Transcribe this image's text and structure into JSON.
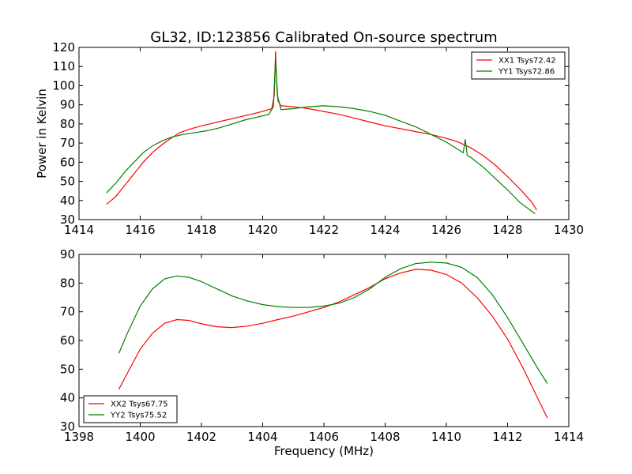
{
  "figure": {
    "title": "GL32, ID:123856 Calibrated On-source spectrum"
  },
  "chart_data": [
    {
      "type": "line",
      "title": "GL32, ID:123856 Calibrated On-source spectrum",
      "xlabel": "",
      "ylabel": "Power in Kelvin",
      "xlim": [
        1414,
        1430
      ],
      "ylim": [
        30,
        120
      ],
      "xticks": [
        1414,
        1416,
        1418,
        1420,
        1422,
        1424,
        1426,
        1428,
        1430
      ],
      "yticks": [
        30,
        40,
        50,
        60,
        70,
        80,
        90,
        100,
        110,
        120
      ],
      "grid": false,
      "legend": "top-right",
      "series": [
        {
          "name": "XX1 Tsys72.42",
          "color": "#ff0000",
          "x": [
            1414.9,
            1415.2,
            1415.5,
            1415.8,
            1416.1,
            1416.4,
            1416.7,
            1417.0,
            1417.3,
            1417.6,
            1418.0,
            1418.4,
            1418.8,
            1419.2,
            1419.6,
            1420.0,
            1420.3,
            1420.38,
            1420.42,
            1420.45,
            1420.5,
            1420.6,
            1421.0,
            1421.5,
            1422.0,
            1422.5,
            1423.0,
            1423.5,
            1424.0,
            1424.5,
            1425.0,
            1425.5,
            1426.0,
            1426.4,
            1426.8,
            1427.2,
            1427.6,
            1428.0,
            1428.4,
            1428.8,
            1428.95
          ],
          "y": [
            38,
            42,
            48,
            54,
            60,
            65,
            69,
            72.5,
            75.5,
            77.2,
            79,
            80.5,
            82,
            83.5,
            85,
            86.5,
            88,
            95,
            118,
            105,
            92,
            89.5,
            89,
            88,
            86.5,
            85,
            83,
            81,
            79,
            77.5,
            76,
            74.5,
            72.5,
            70.5,
            67.5,
            63.5,
            58.5,
            52.5,
            46,
            39,
            35
          ]
        },
        {
          "name": "YY1 Tsys72.86",
          "color": "#008000",
          "x": [
            1414.9,
            1415.2,
            1415.5,
            1415.8,
            1416.1,
            1416.4,
            1416.7,
            1417.0,
            1417.4,
            1417.8,
            1418.2,
            1418.6,
            1419.0,
            1419.4,
            1419.8,
            1420.2,
            1420.35,
            1420.42,
            1420.48,
            1420.6,
            1421.0,
            1421.5,
            1422.0,
            1422.5,
            1423.0,
            1423.5,
            1424.0,
            1424.5,
            1425.0,
            1425.5,
            1426.0,
            1426.55,
            1426.62,
            1426.68,
            1426.8,
            1427.2,
            1427.6,
            1428.0,
            1428.4,
            1428.9
          ],
          "y": [
            44,
            49,
            55,
            60,
            65,
            68.5,
            71,
            73,
            74.5,
            75.5,
            76.5,
            78,
            80,
            82,
            83.5,
            85,
            89,
            114,
            95,
            87.5,
            88,
            89,
            89.5,
            89,
            88,
            86.5,
            84.5,
            81.5,
            78.5,
            74.5,
            70.5,
            65,
            72,
            63.5,
            62.5,
            57.5,
            51.5,
            45.5,
            39,
            33
          ]
        }
      ]
    },
    {
      "type": "line",
      "title": "",
      "xlabel": "Frequency (MHz)",
      "ylabel": "",
      "xlim": [
        1398,
        1414
      ],
      "ylim": [
        30,
        90
      ],
      "xticks": [
        1398,
        1400,
        1402,
        1404,
        1406,
        1408,
        1410,
        1412,
        1414
      ],
      "yticks": [
        30,
        40,
        50,
        60,
        70,
        80,
        90
      ],
      "grid": false,
      "legend": "bottom-left",
      "series": [
        {
          "name": "XX2 Tsys67.75",
          "color": "#ff0000",
          "x": [
            1399.3,
            1399.6,
            1400.0,
            1400.4,
            1400.8,
            1401.2,
            1401.6,
            1402.0,
            1402.5,
            1403.0,
            1403.5,
            1404.0,
            1404.5,
            1405.0,
            1405.5,
            1406.0,
            1406.5,
            1407.0,
            1407.5,
            1408.0,
            1408.5,
            1409.0,
            1409.5,
            1410.0,
            1410.5,
            1411.0,
            1411.5,
            1412.0,
            1412.5,
            1413.0,
            1413.3
          ],
          "y": [
            43,
            49,
            57,
            62.5,
            66,
            67.3,
            67,
            65.8,
            64.8,
            64.5,
            65,
            66,
            67.3,
            68.5,
            70,
            71.5,
            73.5,
            76,
            78.5,
            81.5,
            83.5,
            84.8,
            84.5,
            83,
            80,
            75,
            68.5,
            60.5,
            50.5,
            39.5,
            33
          ]
        },
        {
          "name": "YY2 Tsys75.52",
          "color": "#008000",
          "x": [
            1399.3,
            1399.6,
            1400.0,
            1400.4,
            1400.8,
            1401.2,
            1401.6,
            1402.0,
            1402.5,
            1403.0,
            1403.5,
            1404.0,
            1404.5,
            1405.0,
            1405.5,
            1406.0,
            1406.5,
            1407.0,
            1407.5,
            1408.0,
            1408.5,
            1409.0,
            1409.5,
            1410.0,
            1410.5,
            1411.0,
            1411.5,
            1412.0,
            1412.5,
            1413.0,
            1413.3
          ],
          "y": [
            55.5,
            63,
            72,
            78,
            81.5,
            82.5,
            82,
            80.5,
            78,
            75.5,
            73.8,
            72.5,
            71.8,
            71.5,
            71.5,
            72,
            73,
            75,
            78,
            82,
            85,
            86.8,
            87.3,
            87,
            85.5,
            82,
            76,
            68,
            59,
            50,
            45
          ]
        }
      ]
    }
  ]
}
